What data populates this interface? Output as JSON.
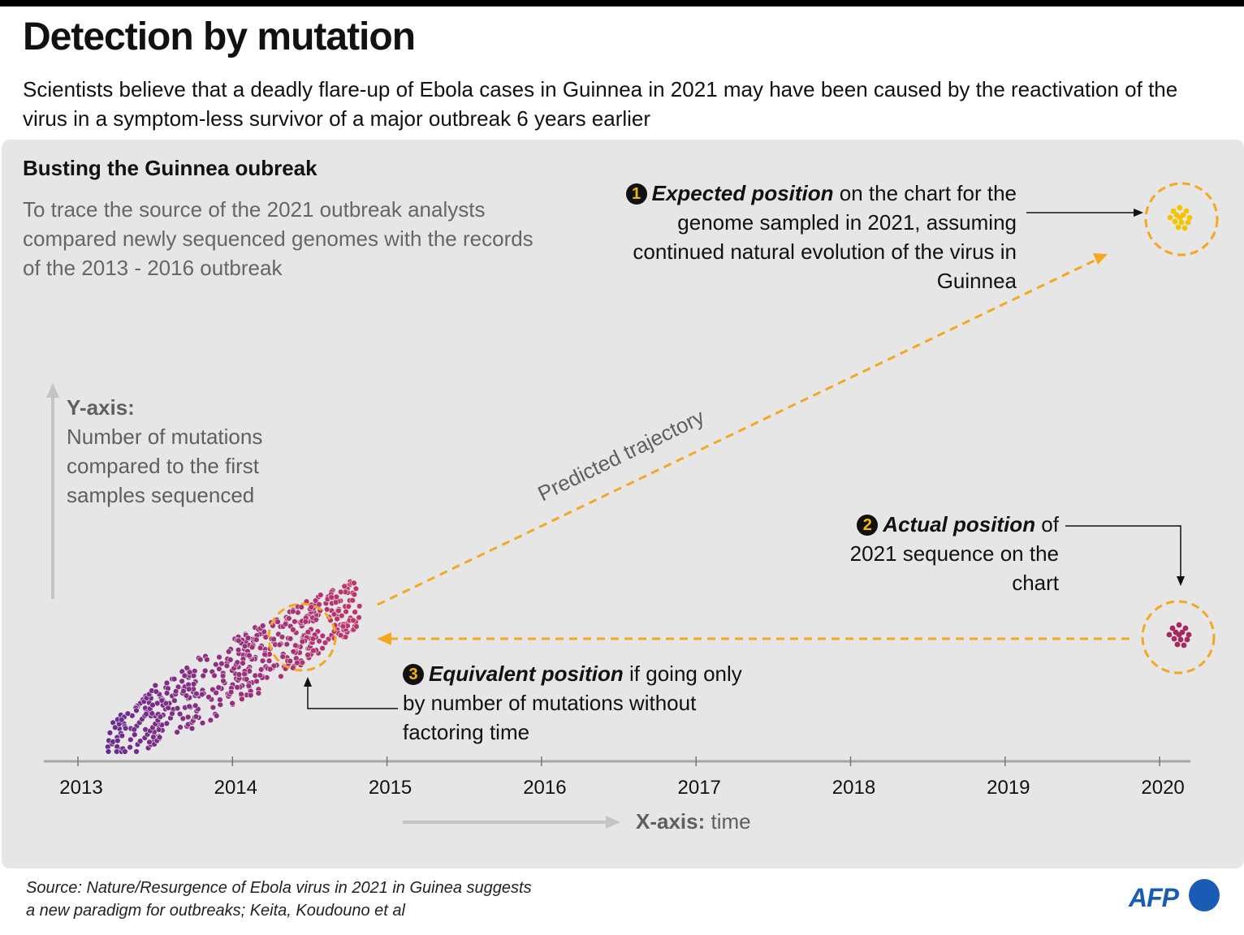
{
  "header": {
    "title": "Detection by mutation",
    "subtitle": "Scientists believe that a  deadly flare-up of Ebola cases in Guinnea in 2021 may have been caused by the reactivation of the virus in a symptom-less survivor of a major outbreak 6 years earlier"
  },
  "panel": {
    "section_title": "Busting the Guinnea oubreak",
    "intro": "To trace the source of the 2021 outbreak analysts compared newly sequenced genomes with the records of the 2013 - 2016 outbreak"
  },
  "annotations": {
    "note1": {
      "number": "1",
      "emph": "Expected position",
      "rest": " on the chart for the genome sampled in 2021, assuming continued natural evolution of the virus in Guinnea"
    },
    "note2": {
      "number": "2",
      "emph": "Actual position",
      "rest": " of 2021 sequence on the chart"
    },
    "note3": {
      "number": "3",
      "emph": "Equivalent position",
      "rest": " if going only by number of mutations without factoring time"
    },
    "trajectory_label": "Predicted trajectory"
  },
  "footer": {
    "source_line1": "Source: Nature/Resurgence of Ebola virus in 2021 in Guinea suggests",
    "source_line2": "a new paradigm for outbreaks; Keita, Koudouno et al",
    "logo_text": "AFP"
  },
  "colors": {
    "accent": "#f5a623",
    "early_dots": "#6a2b8f",
    "late_dots": "#c0336b",
    "expected_dots": "#f5c400",
    "actual_dots": "#a8285e",
    "afp_blue": "#1a5bb5"
  },
  "chart_data": {
    "type": "scatter",
    "title": "Busting the Guinnea oubreak",
    "xlabel_bold": "X-axis:",
    "xlabel_rest": " time",
    "ylabel_bold": "Y-axis:",
    "ylabel_rest": "Number of mutations compared to the first samples sequenced",
    "x_ticks": [
      "2013",
      "2014",
      "2015",
      "2016",
      "2017",
      "2018",
      "2019",
      "2020"
    ],
    "xlim": [
      2012.8,
      2020.2
    ],
    "ylim": [
      0,
      1
    ],
    "grid": false,
    "outbreak_cluster": {
      "x_range": [
        2013.2,
        2014.8
      ],
      "y_range_relative": [
        0.0,
        0.3
      ]
    },
    "expected_2021": {
      "x": 2020.1,
      "y_relative": 1.0
    },
    "actual_2021": {
      "x": 2020.1,
      "y_relative": 0.22
    },
    "equivalent_position": {
      "x": 2014.45,
      "y_relative": 0.22
    }
  }
}
